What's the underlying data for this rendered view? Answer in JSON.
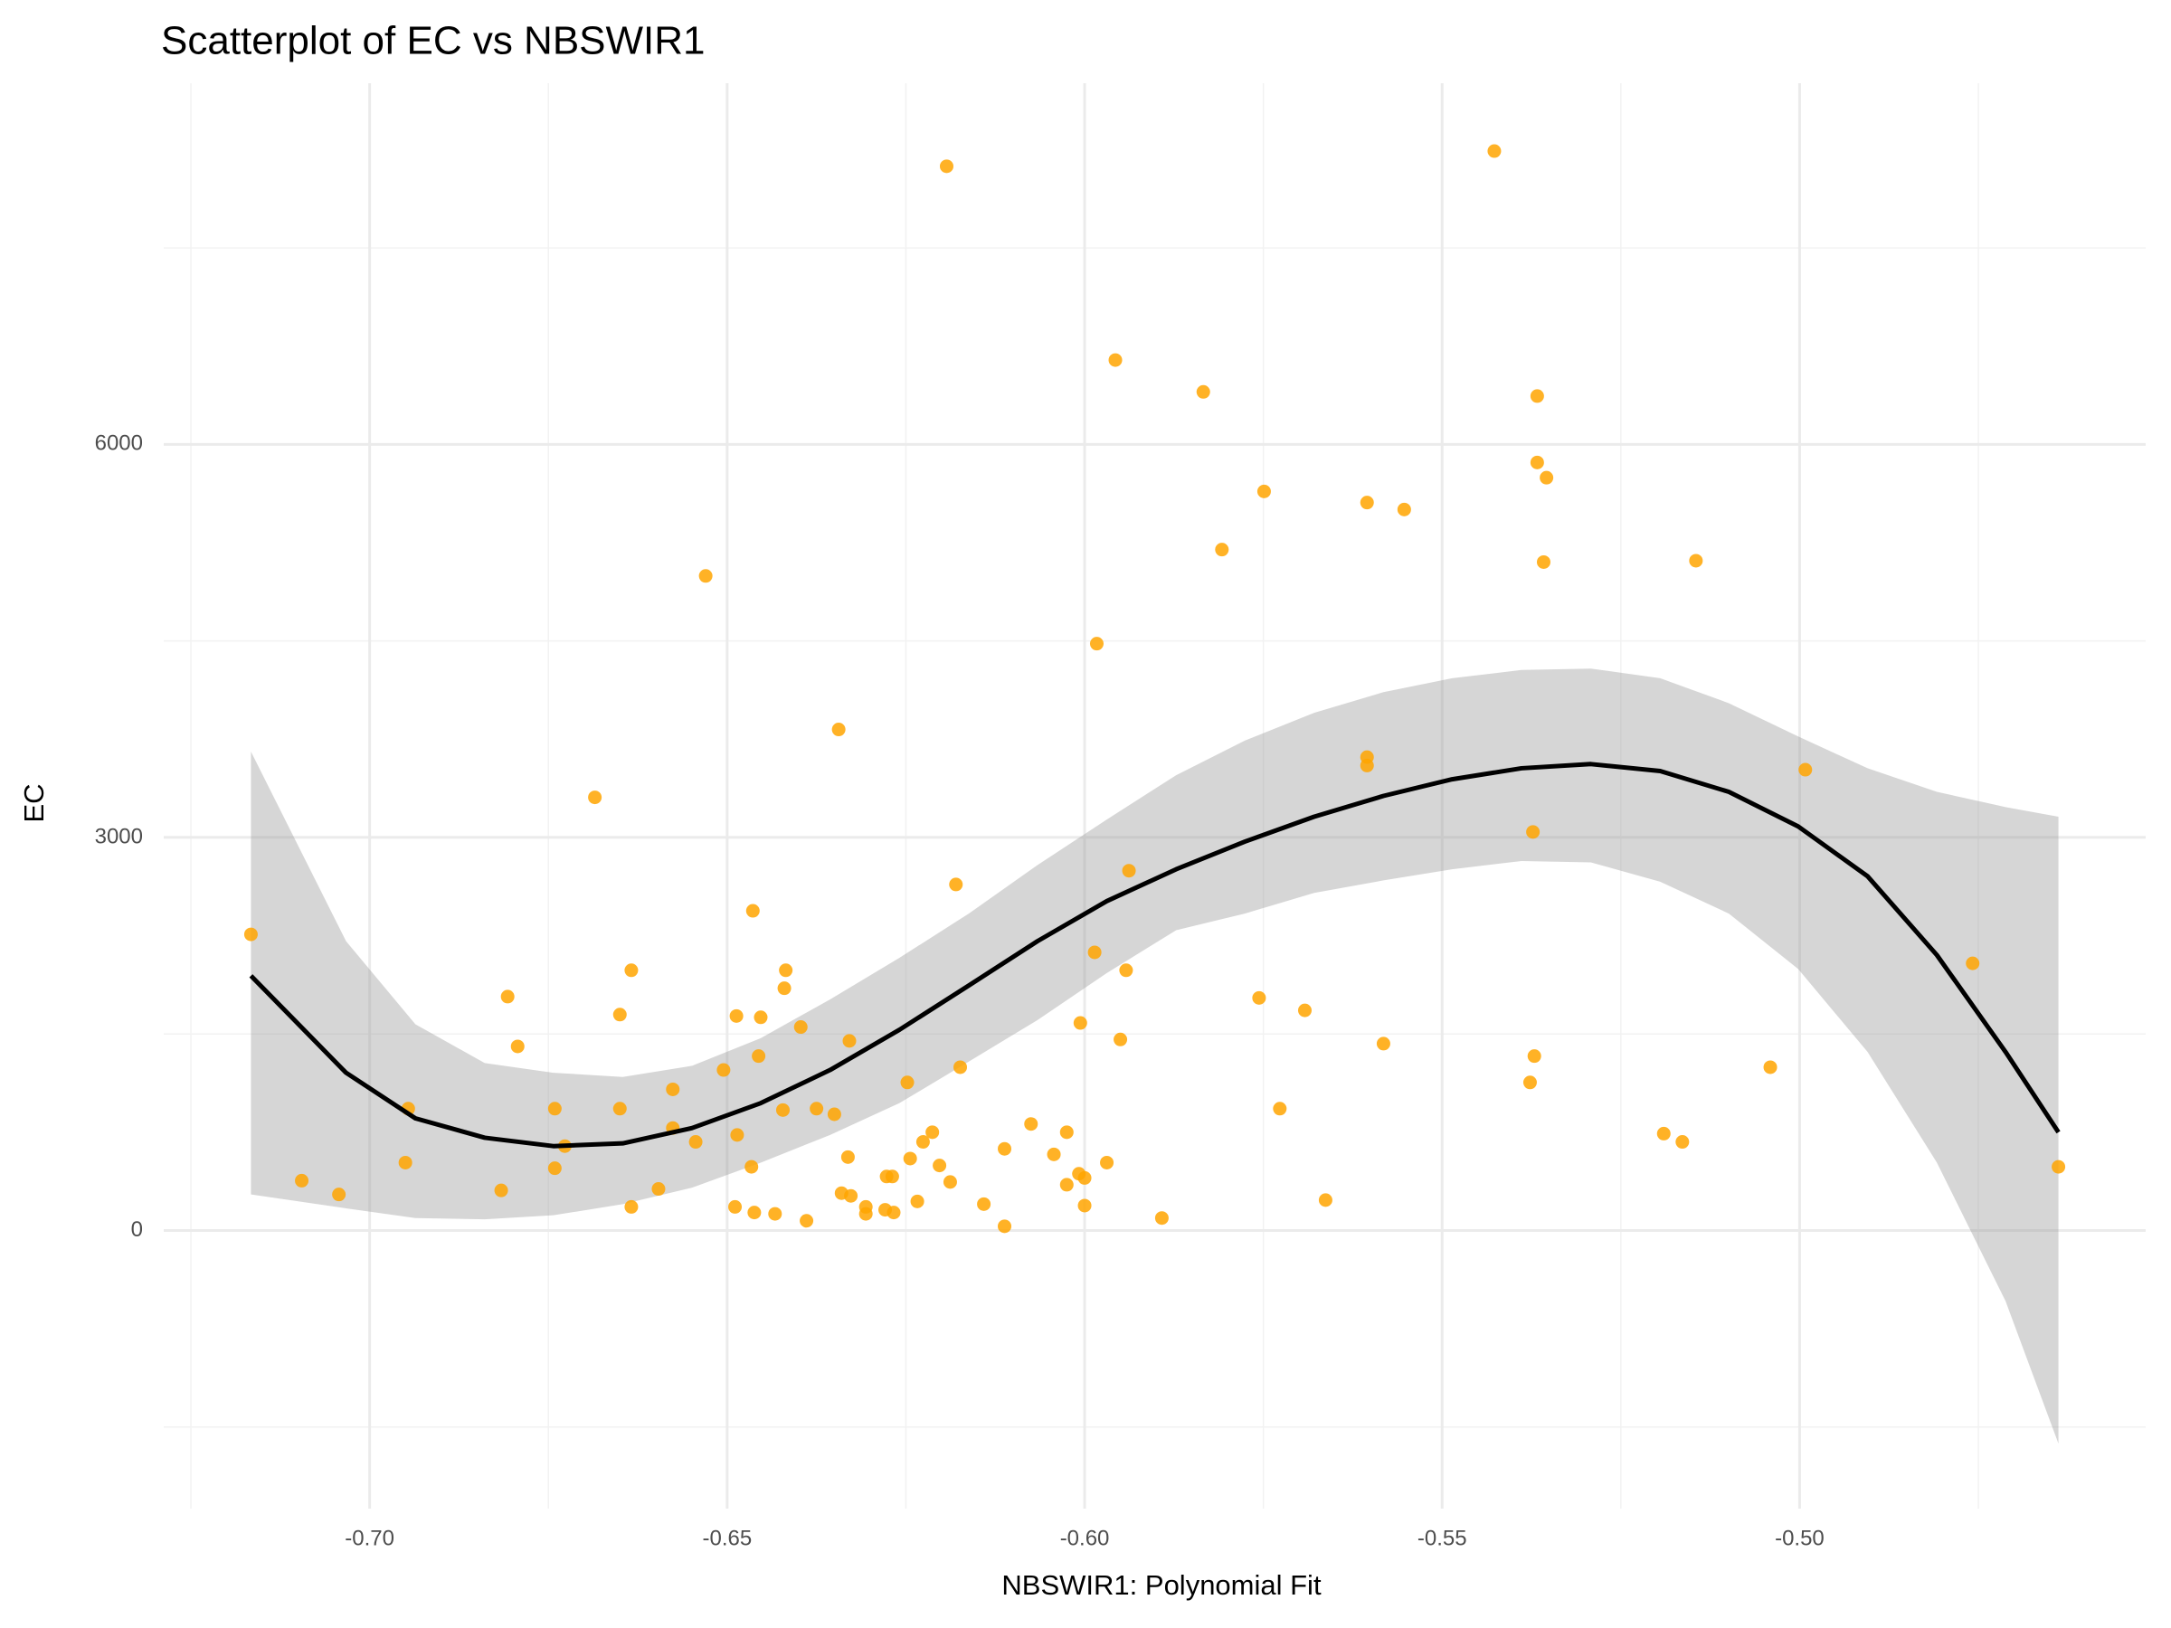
{
  "chart_data": {
    "type": "scatter",
    "title": "Scatterplot of EC vs NBSWIR1",
    "x_label": "NBSWIR1: Polynomial Fit",
    "y_label": "EC",
    "x": [
      -0.7166,
      -0.7095,
      -0.7043,
      -0.695,
      -0.6946,
      -0.6816,
      -0.6807,
      -0.6793,
      -0.6741,
      -0.6741,
      -0.6727,
      -0.6685,
      -0.665,
      -0.665,
      -0.6634,
      -0.6634,
      -0.6596,
      -0.6576,
      -0.6576,
      -0.6544,
      -0.653,
      -0.6505,
      -0.6489,
      -0.6487,
      -0.6486,
      -0.6466,
      -0.6464,
      -0.6462,
      -0.6456,
      -0.6453,
      -0.6433,
      -0.642,
      -0.6418,
      -0.6422,
      -0.6397,
      -0.6389,
      -0.6375,
      -0.635,
      -0.6344,
      -0.634,
      -0.6329,
      -0.6331,
      -0.6327,
      -0.6306,
      -0.6306,
      -0.6277,
      -0.6269,
      -0.6279,
      -0.6267,
      -0.6248,
      -0.6244,
      -0.6234,
      -0.6226,
      -0.6213,
      -0.6203,
      -0.6193,
      -0.6188,
      -0.618,
      -0.6174,
      -0.6141,
      -0.6112,
      -0.6112,
      -0.6075,
      -0.6043,
      -0.6025,
      -0.6025,
      -0.6008,
      -0.6006,
      -0.6,
      -0.6,
      -0.5986,
      -0.5983,
      -0.5969,
      -0.5957,
      -0.595,
      -0.5942,
      -0.5938,
      -0.5892,
      -0.5834,
      -0.5808,
      -0.5756,
      -0.5749,
      -0.5727,
      -0.5692,
      -0.5663,
      -0.5605,
      -0.5605,
      -0.5605,
      -0.5582,
      -0.5553,
      -0.5427,
      -0.5377,
      -0.5373,
      -0.5371,
      -0.5367,
      -0.5367,
      -0.5358,
      -0.5354,
      -0.519,
      -0.5164,
      -0.5145,
      -0.5041,
      -0.4992,
      -0.4758,
      -0.4638
    ],
    "values": [
      2260,
      380,
      275,
      518,
      930,
      306,
      1785,
      1405,
      930,
      475,
      644,
      3306,
      1648,
      930,
      1986,
      180,
      317,
      1077,
      782,
      676,
      4996,
      1225,
      180,
      1637,
      729,
      486,
      2440,
      137,
      1331,
      1627,
      127,
      1849,
      1986,
      919,
      1553,
      74,
      930,
      887,
      3824,
      285,
      1447,
      560,
      264,
      180,
      127,
      412,
      412,
      158,
      137,
      1130,
      549,
      222,
      676,
      750,
      496,
      8123,
      370,
      2641,
      1246,
      201,
      623,
      32,
      813,
      581,
      750,
      349,
      433,
      1584,
      401,
      190,
      2123,
      4479,
      518,
      6644,
      1458,
      1986,
      2746,
      95,
      6401,
      5197,
      1775,
      5641,
      930,
      1680,
      232,
      3613,
      3549,
      5556,
      1426,
      5503,
      8239,
      1130,
      3042,
      1331,
      6369,
      5862,
      5102,
      5746,
      739,
      676,
      5112,
      1246,
      3517,
      2039,
      486
    ],
    "color": "#FFA500",
    "fit": {
      "color": "#000000",
      "band_color": "#999999",
      "x": [
        -0.7166,
        -0.7033,
        -0.6936,
        -0.6839,
        -0.6743,
        -0.6646,
        -0.6549,
        -0.6453,
        -0.6356,
        -0.6259,
        -0.6162,
        -0.6066,
        -0.5969,
        -0.5872,
        -0.5776,
        -0.5679,
        -0.5582,
        -0.5486,
        -0.5389,
        -0.5292,
        -0.5195,
        -0.5099,
        -0.5002,
        -0.4905,
        -0.4808,
        -0.4712,
        -0.4638
      ],
      "values": [
        1944,
        1204,
        856,
        708,
        644,
        665,
        782,
        972,
        1225,
        1532,
        1870,
        2208,
        2514,
        2757,
        2968,
        3158,
        3317,
        3444,
        3528,
        3560,
        3507,
        3348,
        3084,
        2704,
        2102,
        1363,
        750
      ],
      "upper": [
        3655,
        2208,
        1574,
        1278,
        1204,
        1172,
        1257,
        1468,
        1764,
        2081,
        2419,
        2789,
        3137,
        3475,
        3739,
        3951,
        4109,
        4215,
        4278,
        4289,
        4215,
        4025,
        3771,
        3528,
        3348,
        3232,
        3158
      ],
      "lower": [
        275,
        169,
        95,
        85,
        116,
        201,
        327,
        518,
        729,
        972,
        1289,
        1606,
        1965,
        2292,
        2419,
        2577,
        2672,
        2757,
        2820,
        2810,
        2662,
        2419,
        1996,
        1363,
        518,
        -539,
        -1627
      ]
    },
    "xlim": [
      -0.7288,
      -0.4516
    ],
    "ylim": [
      -2123,
      8757
    ],
    "xticks": [
      {
        "value": -0.7,
        "label": "-0.70"
      },
      -0.65,
      {
        "value": -0.6,
        "label": "-0.60"
      },
      -0.55,
      {
        "value": -0.5,
        "label": "-0.50"
      }
    ],
    "yticks": [
      0,
      3000,
      6000
    ],
    "grid": true
  }
}
